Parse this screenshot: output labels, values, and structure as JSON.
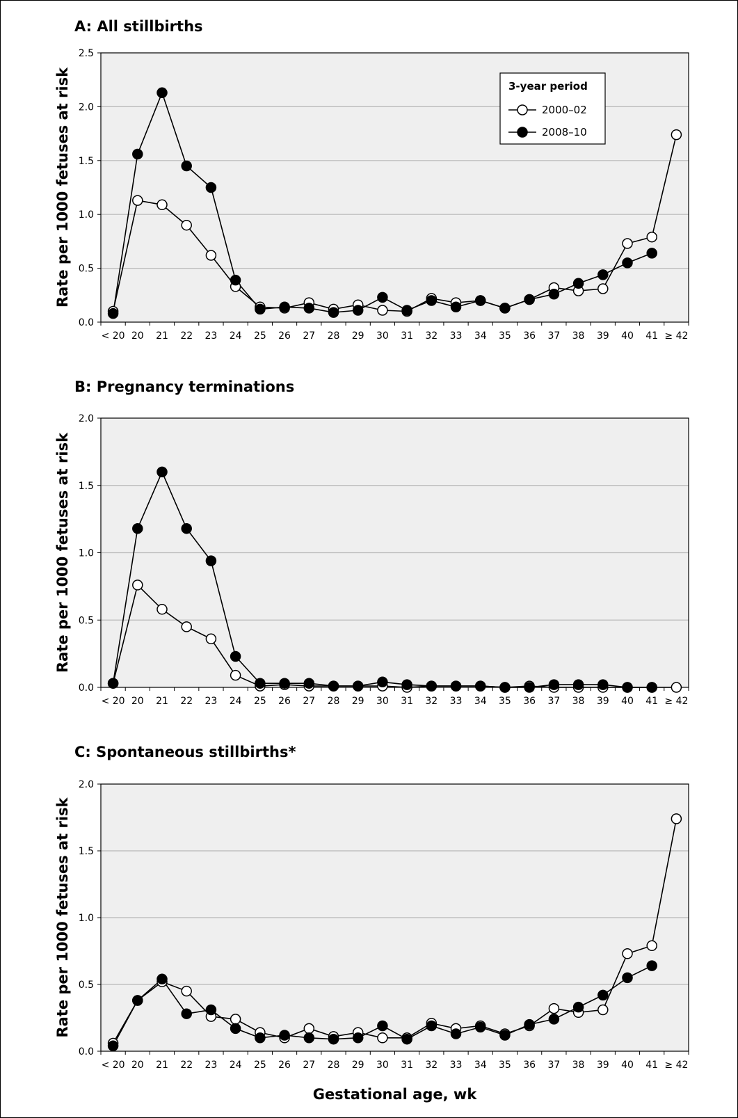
{
  "chart_data": [
    {
      "type": "line",
      "title": "A: All stillbirths",
      "ylabel": "Rate per 1000 fetuses at risk",
      "xlabel": "",
      "ylim": [
        0,
        2.5
      ],
      "yticks": [
        "0.0",
        "0.5",
        "1.0",
        "1.5",
        "2.0",
        "2.5"
      ],
      "grid": true,
      "legend": {
        "title": "3-year period",
        "placement": "top-right"
      },
      "categories": [
        "< 20",
        "20",
        "21",
        "22",
        "23",
        "24",
        "25",
        "26",
        "27",
        "28",
        "29",
        "30",
        "31",
        "32",
        "33",
        "34",
        "35",
        "36",
        "37",
        "38",
        "39",
        "40",
        "41",
        "≥ 42"
      ],
      "series": [
        {
          "name": "2000–02",
          "marker": "open",
          "values": [
            0.1,
            1.13,
            1.09,
            0.9,
            0.62,
            0.33,
            0.14,
            0.13,
            0.18,
            0.12,
            0.16,
            0.11,
            0.1,
            0.22,
            0.18,
            0.2,
            0.13,
            0.21,
            0.32,
            0.29,
            0.31,
            0.73,
            0.79,
            1.74
          ]
        },
        {
          "name": "2008–10",
          "marker": "filled",
          "values": [
            0.08,
            1.56,
            2.13,
            1.45,
            1.25,
            0.39,
            0.12,
            0.14,
            0.13,
            0.09,
            0.11,
            0.23,
            0.11,
            0.2,
            0.14,
            0.2,
            0.13,
            0.21,
            0.26,
            0.36,
            0.44,
            0.55,
            0.64,
            null
          ]
        }
      ]
    },
    {
      "type": "line",
      "title": "B: Pregnancy terminations",
      "ylabel": "Rate per 1000 fetuses at risk",
      "xlabel": "",
      "ylim": [
        0,
        2.0
      ],
      "yticks": [
        "0.0",
        "0.5",
        "1.0",
        "1.5",
        "2.0"
      ],
      "grid": true,
      "categories": [
        "< 20",
        "20",
        "21",
        "22",
        "23",
        "24",
        "25",
        "26",
        "27",
        "28",
        "29",
        "30",
        "31",
        "32",
        "33",
        "34",
        "35",
        "36",
        "37",
        "38",
        "39",
        "40",
        "41",
        "≥ 42"
      ],
      "series": [
        {
          "name": "2000–02",
          "marker": "open",
          "values": [
            0.03,
            0.76,
            0.58,
            0.45,
            0.36,
            0.09,
            0.01,
            0.02,
            0.01,
            0.01,
            0.01,
            0.01,
            0.0,
            0.01,
            0.01,
            0.01,
            0.0,
            0.01,
            0.0,
            0.0,
            0.0,
            0.0,
            0.0,
            0.0
          ]
        },
        {
          "name": "2008–10",
          "marker": "filled",
          "values": [
            0.03,
            1.18,
            1.6,
            1.18,
            0.94,
            0.23,
            0.03,
            0.03,
            0.03,
            0.01,
            0.01,
            0.04,
            0.02,
            0.01,
            0.01,
            0.01,
            0.0,
            0.0,
            0.02,
            0.02,
            0.02,
            0.0,
            0.0,
            null
          ]
        }
      ]
    },
    {
      "type": "line",
      "title": "C: Spontaneous stillbirths*",
      "ylabel": "Rate per 1000 fetuses at risk",
      "xlabel": "Gestational age, wk",
      "ylim": [
        0,
        2.0
      ],
      "yticks": [
        "0.0",
        "0.5",
        "1.0",
        "1.5",
        "2.0"
      ],
      "grid": true,
      "categories": [
        "< 20",
        "20",
        "21",
        "22",
        "23",
        "24",
        "25",
        "26",
        "27",
        "28",
        "29",
        "30",
        "31",
        "32",
        "33",
        "34",
        "35",
        "36",
        "37",
        "38",
        "39",
        "40",
        "41",
        "≥ 42"
      ],
      "series": [
        {
          "name": "2000–02",
          "marker": "open",
          "values": [
            0.06,
            0.38,
            0.52,
            0.45,
            0.26,
            0.24,
            0.14,
            0.1,
            0.17,
            0.11,
            0.14,
            0.1,
            0.1,
            0.21,
            0.17,
            0.19,
            0.13,
            0.19,
            0.32,
            0.29,
            0.31,
            0.73,
            0.79,
            1.74
          ]
        },
        {
          "name": "2008–10",
          "marker": "filled",
          "values": [
            0.04,
            0.38,
            0.54,
            0.28,
            0.31,
            0.17,
            0.1,
            0.12,
            0.1,
            0.09,
            0.1,
            0.19,
            0.09,
            0.19,
            0.13,
            0.18,
            0.12,
            0.2,
            0.24,
            0.33,
            0.42,
            0.55,
            0.64,
            null
          ]
        }
      ]
    }
  ]
}
